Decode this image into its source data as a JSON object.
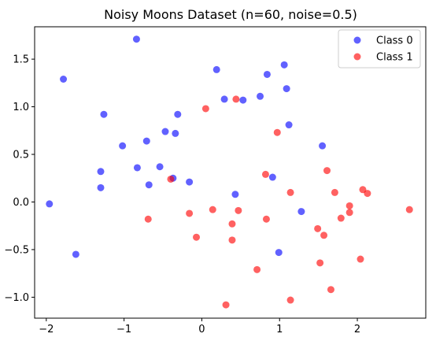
{
  "chart_data": {
    "type": "scatter",
    "title": "Noisy Moons Dataset (n=60, noise=0.5)",
    "xlabel": "",
    "ylabel": "",
    "xlim": [
      -2.15,
      2.88
    ],
    "ylim": [
      -1.22,
      1.84
    ],
    "xticks": [
      -2,
      -1,
      0,
      1,
      2
    ],
    "yticks": [
      -1.0,
      -0.5,
      0.0,
      0.5,
      1.0,
      1.5
    ],
    "xtick_labels": [
      "−2",
      "−1",
      "0",
      "1",
      "2"
    ],
    "ytick_labels": [
      "−1.0",
      "−0.5",
      "0.0",
      "0.5",
      "1.0",
      "1.5"
    ],
    "grid": false,
    "legend_position": "top-right",
    "series": [
      {
        "name": "Class 0",
        "color": "#0000ff",
        "points": [
          [
            -1.96,
            -0.02
          ],
          [
            -1.78,
            1.29
          ],
          [
            -1.62,
            -0.55
          ],
          [
            -1.3,
            0.32
          ],
          [
            -1.3,
            0.15
          ],
          [
            -1.26,
            0.92
          ],
          [
            -1.02,
            0.59
          ],
          [
            -0.84,
            1.71
          ],
          [
            -0.83,
            0.36
          ],
          [
            -0.71,
            0.64
          ],
          [
            -0.68,
            0.18
          ],
          [
            -0.54,
            0.37
          ],
          [
            -0.47,
            0.74
          ],
          [
            -0.37,
            0.25
          ],
          [
            -0.34,
            0.72
          ],
          [
            -0.31,
            0.92
          ],
          [
            -0.16,
            0.21
          ],
          [
            0.19,
            1.39
          ],
          [
            0.29,
            1.08
          ],
          [
            0.43,
            0.08
          ],
          [
            0.53,
            1.07
          ],
          [
            0.75,
            1.11
          ],
          [
            0.84,
            1.34
          ],
          [
            0.91,
            0.26
          ],
          [
            0.99,
            -0.53
          ],
          [
            1.06,
            1.44
          ],
          [
            1.09,
            1.19
          ],
          [
            1.12,
            0.81
          ],
          [
            1.28,
            -0.1
          ],
          [
            1.55,
            0.59
          ]
        ]
      },
      {
        "name": "Class 1",
        "color": "#ff0000",
        "points": [
          [
            0.05,
            0.98
          ],
          [
            0.44,
            1.08
          ],
          [
            -0.69,
            -0.18
          ],
          [
            -0.4,
            0.24
          ],
          [
            -0.16,
            -0.12
          ],
          [
            -0.07,
            -0.37
          ],
          [
            0.14,
            -0.08
          ],
          [
            0.31,
            -1.08
          ],
          [
            0.39,
            -0.23
          ],
          [
            0.39,
            -0.4
          ],
          [
            0.47,
            -0.09
          ],
          [
            0.71,
            -0.71
          ],
          [
            0.82,
            0.29
          ],
          [
            0.83,
            -0.18
          ],
          [
            0.97,
            0.73
          ],
          [
            1.14,
            0.1
          ],
          [
            1.14,
            -1.03
          ],
          [
            1.49,
            -0.28
          ],
          [
            1.52,
            -0.64
          ],
          [
            1.57,
            -0.35
          ],
          [
            1.61,
            0.33
          ],
          [
            1.66,
            -0.92
          ],
          [
            1.71,
            0.1
          ],
          [
            1.79,
            -0.17
          ],
          [
            1.9,
            -0.04
          ],
          [
            1.9,
            -0.11
          ],
          [
            2.04,
            -0.6
          ],
          [
            2.07,
            0.13
          ],
          [
            2.13,
            0.09
          ],
          [
            2.67,
            -0.08
          ]
        ]
      }
    ]
  }
}
